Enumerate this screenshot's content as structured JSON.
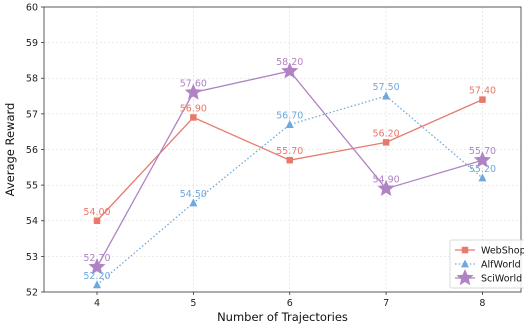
{
  "chart_data": {
    "type": "line",
    "xlabel": "Number of Trajectories",
    "ylabel": "Average Reward",
    "x": [
      4,
      5,
      6,
      7,
      8
    ],
    "xlim": [
      3.45,
      8.4
    ],
    "ylim": [
      52,
      60
    ],
    "xticks": [
      "4",
      "5",
      "6",
      "7",
      "8"
    ],
    "yticks": [
      "52",
      "53",
      "54",
      "55",
      "56",
      "57",
      "58",
      "59",
      "60"
    ],
    "grid": true,
    "legend_position": "bottom-right",
    "series": [
      {
        "name": "WebShop",
        "values": [
          54.0,
          56.9,
          55.7,
          56.2,
          57.4
        ],
        "labels": [
          "54.00",
          "56.90",
          "55.70",
          "56.20",
          "57.40"
        ],
        "color": "#e8796b",
        "line_style": "solid",
        "marker": "square"
      },
      {
        "name": "AlfWorld",
        "values": [
          52.2,
          54.5,
          56.7,
          57.5,
          55.2
        ],
        "labels": [
          "52.20",
          "54.50",
          "56.70",
          "57.50",
          "55.20"
        ],
        "color": "#6fa8dc",
        "line_style": "dotted",
        "marker": "triangle"
      },
      {
        "name": "SciWorld",
        "values": [
          52.7,
          57.6,
          58.2,
          54.9,
          55.7
        ],
        "labels": [
          "52.70",
          "57.60",
          "58.20",
          "54.90",
          "55.70"
        ],
        "color": "#b083c4",
        "line_style": "solid",
        "marker": "star"
      }
    ]
  }
}
